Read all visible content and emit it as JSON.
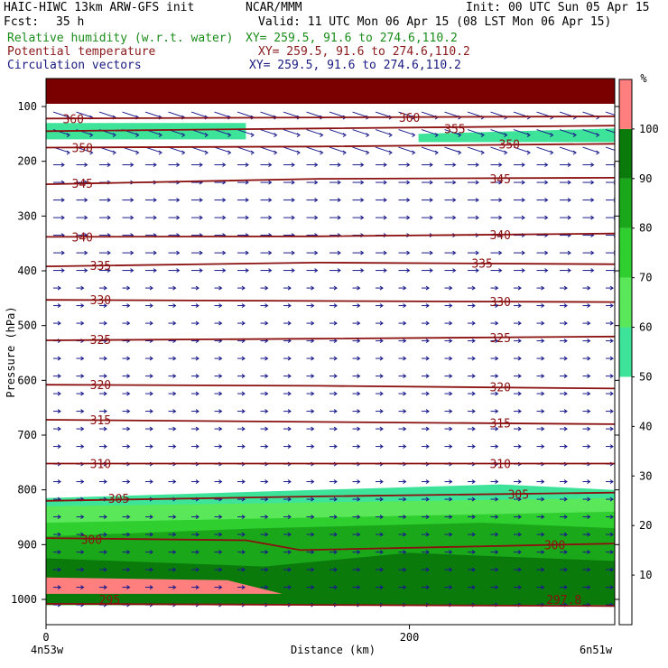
{
  "header": {
    "model": "HAIC-HIWC 13km ARW-GFS init",
    "org": "NCAR/MMM",
    "init": "Init: 00 UTC Sun 05 Apr 15",
    "fcst_label": "Fcst:",
    "fcst_value": "35 h",
    "valid": "Valid: 11 UTC Mon 06 Apr 15 (08 LST Mon 06 Apr 15)",
    "field1": "Relative humidity (w.r.t. water)",
    "field1_xy": "XY= 259.5, 91.6 to 274.6,110.2",
    "field2": "Potential temperature",
    "field2_xy": "XY= 259.5, 91.6 to 274.6,110.2",
    "field3": "Circulation vectors",
    "field3_xy": "XY= 259.5, 91.6 to 274.6,110.2"
  },
  "colors": {
    "theta": "#8b1010",
    "vectors": "#1a1a8c",
    "rh_fill": [
      "#ffffff",
      "#ffffff",
      "#ffffff",
      "#ffffff",
      "#ffffff",
      "#3ee39a",
      "#5ae85a",
      "#2ecf2e",
      "#1aa81a",
      "#0a7a0a",
      "#ff7f7f"
    ]
  },
  "chart_data": {
    "type": "heatmap",
    "title": "Relative humidity (w.r.t. water)",
    "ylabel": "Pressure (hPa)",
    "xlabel": "Distance (km)",
    "yticks": [
      100,
      200,
      300,
      400,
      500,
      600,
      700,
      800,
      900,
      1000
    ],
    "ytick_labels": [
      "100",
      "200",
      "300",
      "400",
      "500",
      "600",
      "700",
      "800",
      "900",
      "1000"
    ],
    "xticks": [
      0,
      200
    ],
    "xtick_labels": [
      "0",
      "200"
    ],
    "x_end_labels": [
      "4n53w",
      "6n51w"
    ],
    "ylim": [
      1050,
      50
    ],
    "xlim": [
      0,
      313
    ],
    "colorbar": {
      "unit": "%",
      "levels": [
        0,
        10,
        20,
        30,
        40,
        50,
        60,
        70,
        80,
        90,
        100,
        110
      ],
      "tick_labels": [
        "10",
        "20",
        "30",
        "40",
        "50",
        "60",
        "70",
        "80",
        "90",
        "100"
      ]
    },
    "theta_contours": [
      {
        "label": "295",
        "points": [
          [
            0,
            1008
          ],
          [
            150,
            1010
          ],
          [
            313,
            1012
          ]
        ],
        "label_positions": [
          [
            35,
            1000
          ]
        ]
      },
      {
        "label": "297.8",
        "points": [
          [
            280,
            1000
          ]
        ],
        "label_positions": [
          [
            285,
            1000
          ]
        ]
      },
      {
        "label": "300",
        "points": [
          [
            0,
            888
          ],
          [
            110,
            892
          ],
          [
            140,
            910
          ],
          [
            313,
            898
          ]
        ],
        "label_positions": [
          [
            25,
            890
          ],
          [
            280,
            900
          ]
        ]
      },
      {
        "label": "305",
        "points": [
          [
            0,
            820
          ],
          [
            150,
            812
          ],
          [
            313,
            805
          ]
        ],
        "label_positions": [
          [
            40,
            815
          ],
          [
            260,
            808
          ]
        ]
      },
      {
        "label": "310",
        "points": [
          [
            0,
            752
          ],
          [
            313,
            752
          ]
        ],
        "label_positions": [
          [
            30,
            752
          ],
          [
            250,
            752
          ]
        ]
      },
      {
        "label": "315",
        "points": [
          [
            0,
            672
          ],
          [
            150,
            676
          ],
          [
            313,
            680
          ]
        ],
        "label_positions": [
          [
            30,
            672
          ],
          [
            250,
            678
          ]
        ]
      },
      {
        "label": "320",
        "points": [
          [
            0,
            608
          ],
          [
            150,
            610
          ],
          [
            313,
            615
          ]
        ],
        "label_positions": [
          [
            30,
            608
          ],
          [
            250,
            612
          ]
        ]
      },
      {
        "label": "325",
        "points": [
          [
            0,
            527
          ],
          [
            150,
            524
          ],
          [
            313,
            520
          ]
        ],
        "label_positions": [
          [
            30,
            525
          ],
          [
            250,
            522
          ]
        ]
      },
      {
        "label": "330",
        "points": [
          [
            0,
            453
          ],
          [
            150,
            455
          ],
          [
            313,
            457
          ]
        ],
        "label_positions": [
          [
            30,
            453
          ],
          [
            250,
            456
          ]
        ]
      },
      {
        "label": "335",
        "points": [
          [
            0,
            392
          ],
          [
            150,
            385
          ],
          [
            313,
            388
          ]
        ],
        "label_positions": [
          [
            30,
            390
          ],
          [
            240,
            386
          ]
        ]
      },
      {
        "label": "340",
        "points": [
          [
            0,
            338
          ],
          [
            150,
            337
          ],
          [
            313,
            332
          ]
        ],
        "label_positions": [
          [
            20,
            338
          ],
          [
            250,
            334
          ]
        ]
      },
      {
        "label": "345",
        "points": [
          [
            0,
            242
          ],
          [
            150,
            232
          ],
          [
            313,
            230
          ]
        ],
        "label_positions": [
          [
            20,
            240
          ],
          [
            250,
            232
          ]
        ]
      },
      {
        "label": "350",
        "points": [
          [
            0,
            175
          ],
          [
            150,
            173
          ],
          [
            313,
            168
          ]
        ],
        "label_positions": [
          [
            20,
            175
          ],
          [
            255,
            168
          ]
        ]
      },
      {
        "label": "355",
        "points": [
          [
            0,
            145
          ],
          [
            150,
            140
          ],
          [
            313,
            135
          ]
        ],
        "label_positions": [
          [
            225,
            140
          ]
        ]
      },
      {
        "label": "360",
        "points": [
          [
            0,
            122
          ],
          [
            150,
            120
          ],
          [
            313,
            118
          ]
        ],
        "label_positions": [
          [
            15,
            122
          ],
          [
            200,
            120
          ]
        ]
      }
    ],
    "rh_regions": [
      {
        "level": 100,
        "band": [
          [
            0,
            55
          ],
          [
            313,
            55
          ],
          [
            313,
            95
          ],
          [
            0,
            95
          ]
        ]
      },
      {
        "level": 50,
        "band": [
          [
            0,
            130
          ],
          [
            110,
            130
          ],
          [
            110,
            160
          ],
          [
            0,
            160
          ]
        ]
      },
      {
        "level": 50,
        "band": [
          [
            205,
            150
          ],
          [
            313,
            140
          ],
          [
            313,
            165
          ],
          [
            205,
            165
          ]
        ]
      },
      {
        "level": 50,
        "band": [
          [
            0,
            815
          ],
          [
            250,
            790
          ],
          [
            313,
            800
          ],
          [
            313,
            1010
          ],
          [
            0,
            1010
          ]
        ]
      },
      {
        "level": 60,
        "band": [
          [
            0,
            830
          ],
          [
            313,
            815
          ],
          [
            313,
            1010
          ],
          [
            0,
            1010
          ]
        ]
      },
      {
        "level": 70,
        "band": [
          [
            0,
            860
          ],
          [
            313,
            840
          ],
          [
            313,
            1010
          ],
          [
            0,
            1010
          ]
        ]
      },
      {
        "level": 80,
        "band": [
          [
            0,
            885
          ],
          [
            120,
            870
          ],
          [
            240,
            860
          ],
          [
            313,
            870
          ],
          [
            313,
            1010
          ],
          [
            0,
            1010
          ]
        ]
      },
      {
        "level": 90,
        "band": [
          [
            0,
            925
          ],
          [
            120,
            940
          ],
          [
            200,
            915
          ],
          [
            313,
            930
          ],
          [
            313,
            1010
          ],
          [
            0,
            1010
          ]
        ]
      },
      {
        "level": 100,
        "band": [
          [
            0,
            960
          ],
          [
            100,
            965
          ],
          [
            130,
            990
          ],
          [
            0,
            990
          ]
        ]
      }
    ]
  }
}
